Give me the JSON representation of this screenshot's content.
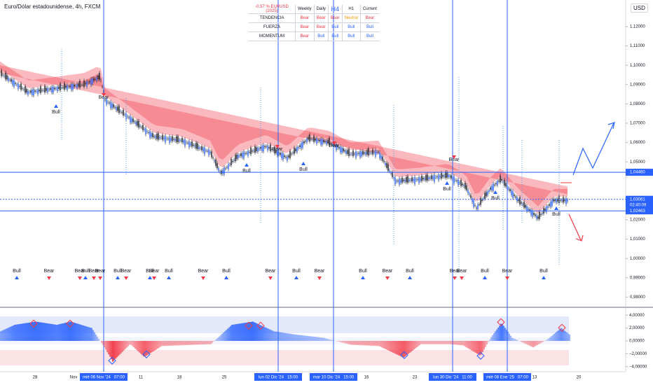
{
  "header": {
    "symbol": "Euro/Dólar estadounidense, 4h, FXCM",
    "currency": "USD"
  },
  "table": {
    "columns": [
      "-0.57 % EURUSD (2025)",
      "Weekly",
      "Daily",
      "H4",
      "H1",
      "Current"
    ],
    "rows": [
      {
        "label": "TENDENCIA",
        "cells": [
          "Bear",
          "Bear",
          "Bear",
          "Neutral",
          "Bear"
        ]
      },
      {
        "label": "FUERZA",
        "cells": [
          "Bear",
          "Bear",
          "Bull",
          "Bull",
          "Bull"
        ]
      },
      {
        "label": "MOMENTUM",
        "cells": [
          "Bear",
          "Bull",
          "Bull",
          "Bull",
          "Bull"
        ]
      }
    ]
  },
  "signal_colors": {
    "Bear": "#f23645",
    "Bull": "#2962ff",
    "Neutral": "#ff9800"
  },
  "price_axis": {
    "ticks": [
      {
        "value": 1.12,
        "label": "1,12000"
      },
      {
        "value": 1.11,
        "label": "1,11000"
      },
      {
        "value": 1.1,
        "label": "1,10000"
      },
      {
        "value": 1.09,
        "label": "1,09000"
      },
      {
        "value": 1.08,
        "label": "1,08000"
      },
      {
        "value": 1.07,
        "label": "1,07000"
      },
      {
        "value": 1.06,
        "label": "1,06000"
      },
      {
        "value": 1.05,
        "label": "1,05000"
      },
      {
        "value": 1.02,
        "label": "1,02000"
      },
      {
        "value": 1.01,
        "label": "1,01000"
      },
      {
        "value": 1.0,
        "label": "1,00000"
      },
      {
        "value": 0.99,
        "label": "0,99000"
      },
      {
        "value": 0.98,
        "label": "0,98000"
      }
    ],
    "levels": [
      {
        "value": 1.0446,
        "label": "1,04460",
        "color": "#2962ff"
      },
      {
        "value": 1.03061,
        "label": "1,03061",
        "color": "#2962ff",
        "countdown": "02:40:09"
      },
      {
        "value": 1.02463,
        "label": "1,02463",
        "color": "#2962ff"
      }
    ]
  },
  "oscillator_axis": {
    "ticks": [
      {
        "value": 4,
        "label": "4,00000"
      },
      {
        "value": 2,
        "label": "2,00000"
      },
      {
        "value": 0,
        "label": "0,00000"
      },
      {
        "value": -2,
        "label": "−2,00000"
      },
      {
        "value": -4,
        "label": "−4,00000"
      }
    ]
  },
  "time_axis": [
    "28",
    "Nov",
    "mié 06 Nov '24   07:00",
    "11",
    "18",
    "25",
    "lun 02 Dic '24   15:00",
    "mar 10 Dic '24   15:00",
    "16",
    "23",
    "lun 30 Dic '24   11:00",
    "mié 08 Ene '25   07:00",
    "13",
    "20"
  ],
  "chart_signals": [
    "Bull",
    "Bear",
    "Bull",
    "Bear",
    "Bull",
    "Bear",
    "Bear",
    "Bull",
    "Bull",
    "Bull"
  ],
  "bottom_signals": [
    "Bull",
    "Bear",
    "Bear",
    "Bull",
    "Bear",
    "Bear",
    "Bull",
    "Bear",
    "Bull",
    "Bear",
    "Bull",
    "Bear",
    "Bull",
    "Bear",
    "Bull",
    "Bear",
    "Bull",
    "Bear",
    "Bull",
    "Bear",
    "Bear",
    "Bull",
    "Bear",
    "Bull"
  ]
}
